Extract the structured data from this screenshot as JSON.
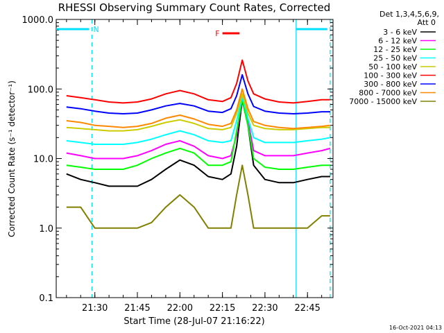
{
  "chart_data": {
    "type": "line",
    "title": "RHESSI Observing Summary Count Rates, Corrected",
    "xlabel": "Start Time (28-Jul-07 21:16:22)",
    "ylabel": "Corrected Count Rate (s⁻¹ detector⁻¹)",
    "y_scale": "log",
    "ylim": [
      0.1,
      1000
    ],
    "y_ticks": [
      {
        "value": 0.1,
        "label": "0.1"
      },
      {
        "value": 1,
        "label": "1.0"
      },
      {
        "value": 10,
        "label": "10.0"
      },
      {
        "value": 100,
        "label": "100.0"
      },
      {
        "value": 1000,
        "label": "1000.0"
      }
    ],
    "xlim": [
      "21:16:22",
      "22:54"
    ],
    "x_ticks": [
      "21:30",
      "21:45",
      "22:00",
      "22:15",
      "22:30",
      "22:45"
    ],
    "legend_header": [
      "Det 1,3,4,5,6,9,",
      "Att 0"
    ],
    "legend_position": "right",
    "flags": [
      {
        "label": "N",
        "color": "#00e0ff",
        "start": "21:16:22",
        "end": "21:28"
      },
      {
        "label": "F",
        "color": "#ff0000",
        "start": "22:15",
        "end": "22:21"
      }
    ],
    "night_markers": [
      {
        "time": "21:16:22",
        "style": "solid",
        "color": "#00e0ff"
      },
      {
        "time": "21:29",
        "style": "dashed",
        "color": "#00e0ff"
      },
      {
        "time": "22:41",
        "style": "solid",
        "color": "#00e0ff"
      },
      {
        "time": "22:53",
        "style": "dashed",
        "color": "#00e0ff"
      }
    ],
    "x_times": [
      "21:20",
      "21:25",
      "21:30",
      "21:35",
      "21:40",
      "21:45",
      "21:50",
      "21:55",
      "22:00",
      "22:05",
      "22:10",
      "22:15",
      "22:18",
      "22:20",
      "22:22",
      "22:24",
      "22:26",
      "22:30",
      "22:35",
      "22:40",
      "22:45",
      "22:50",
      "22:53"
    ],
    "series": [
      {
        "name": "3 - 6 keV",
        "color": "#000000",
        "values": [
          6,
          5,
          4.5,
          4,
          4,
          4,
          5,
          7,
          9.5,
          8,
          5.5,
          5,
          6,
          15,
          70,
          30,
          8,
          5,
          4.5,
          4.5,
          5,
          5.5,
          5.5
        ]
      },
      {
        "name": "6 - 12 keV",
        "color": "#ff00ff",
        "values": [
          12,
          11,
          10,
          10,
          10,
          11,
          13,
          16,
          18,
          15,
          11,
          10,
          11,
          22,
          75,
          35,
          13,
          11,
          11,
          11,
          12,
          13,
          14
        ]
      },
      {
        "name": "12 - 25 keV",
        "color": "#00ff00",
        "values": [
          8,
          7.5,
          7,
          7,
          7,
          8,
          10,
          12,
          14,
          12,
          8,
          8,
          9,
          25,
          72,
          30,
          10,
          7.5,
          7,
          7,
          7.5,
          8,
          8
        ]
      },
      {
        "name": "25 - 50 keV",
        "color": "#00ffff",
        "values": [
          18,
          17,
          16,
          16,
          16,
          17,
          19,
          22,
          25,
          22,
          18,
          17,
          18,
          35,
          80,
          38,
          20,
          17,
          17,
          17,
          18,
          19,
          20
        ]
      },
      {
        "name": "50 - 100 keV",
        "color": "#cccc00",
        "values": [
          28,
          27,
          26,
          25,
          25,
          26,
          29,
          33,
          36,
          32,
          27,
          26,
          28,
          45,
          85,
          45,
          30,
          27,
          26,
          26,
          27,
          28,
          28
        ]
      },
      {
        "name": "100 - 300 keV",
        "color": "#ff0000",
        "values": [
          80,
          75,
          70,
          65,
          63,
          65,
          72,
          85,
          95,
          85,
          70,
          66,
          75,
          120,
          260,
          130,
          85,
          72,
          65,
          63,
          66,
          70,
          70
        ]
      },
      {
        "name": "300 - 800 keV",
        "color": "#0000ff",
        "values": [
          55,
          52,
          48,
          45,
          44,
          45,
          50,
          57,
          62,
          57,
          48,
          46,
          52,
          80,
          160,
          85,
          56,
          48,
          45,
          44,
          45,
          47,
          47
        ]
      },
      {
        "name": "800 - 7000 keV",
        "color": "#ff8800",
        "values": [
          35,
          33,
          30,
          29,
          28,
          29,
          32,
          38,
          42,
          37,
          31,
          29,
          32,
          50,
          100,
          52,
          34,
          30,
          28,
          27,
          28,
          29,
          30
        ]
      },
      {
        "name": "7000 - 15000 keV",
        "color": "#808000",
        "values": [
          2,
          2,
          1,
          1,
          1,
          1,
          1.2,
          2,
          3,
          2,
          1,
          1,
          1,
          3,
          8,
          3,
          1,
          1,
          1,
          1,
          1,
          1.5,
          1.5
        ]
      }
    ]
  },
  "footer": {
    "timestamp": "16-Oct-2021 04:13"
  }
}
